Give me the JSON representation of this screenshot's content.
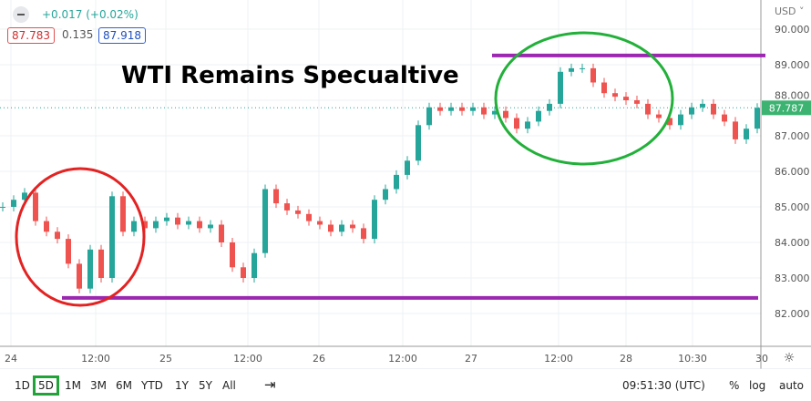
{
  "header": {
    "change": "+0.017 (+0.02%)",
    "bid": "87.783",
    "spread": "0.135",
    "ask": "87.918",
    "currency": "USD"
  },
  "colors": {
    "up": "#26a69a",
    "down": "#ef5350",
    "level_line": "#9c27b0",
    "red_circle": "#e32222",
    "green_circle": "#22b03a",
    "price_tag": "#3cb371"
  },
  "chart_data": {
    "type": "candlestick",
    "title": "WTI Remains Specualtive",
    "ylim": [
      81.3,
      90.8
    ],
    "yticks": [
      82,
      83,
      84,
      85,
      86,
      87,
      88,
      89,
      90
    ],
    "ytick_labels": [
      "82.000",
      "83.000",
      "84.000",
      "85.000",
      "86.000",
      "87.000",
      "88.000",
      "89.000",
      "90.000"
    ],
    "xtick_labels": [
      "24",
      "12:00",
      "25",
      "12:00",
      "26",
      "12:00",
      "27",
      "12:00",
      "28",
      "10:30",
      "30"
    ],
    "closes": [
      85.0,
      85.2,
      85.4,
      84.6,
      84.3,
      84.1,
      83.4,
      82.7,
      83.8,
      83.0,
      85.3,
      84.3,
      84.6,
      84.4,
      84.6,
      84.7,
      84.5,
      84.6,
      84.4,
      84.5,
      84.0,
      83.3,
      83.0,
      83.7,
      85.5,
      85.1,
      84.9,
      84.8,
      84.6,
      84.5,
      84.3,
      84.5,
      84.4,
      84.1,
      85.2,
      85.5,
      85.9,
      86.3,
      87.3,
      87.8,
      87.7,
      87.8,
      87.7,
      87.8,
      87.6,
      87.7,
      87.5,
      87.2,
      87.4,
      87.7,
      87.9,
      88.8,
      88.9,
      88.9,
      88.5,
      88.2,
      88.1,
      88.0,
      87.9,
      87.6,
      87.5,
      87.3,
      87.6,
      87.8,
      87.9,
      87.6,
      87.4,
      86.9,
      87.2,
      87.787
    ],
    "last_price": "87.787",
    "levels": [
      89.26,
      82.44
    ],
    "annotations": [
      "red circle around 24th low",
      "green circle around 27th high"
    ]
  },
  "toolbar": {
    "ranges": [
      "1D",
      "5D",
      "1M",
      "3M",
      "6M",
      "YTD",
      "1Y",
      "5Y",
      "All"
    ],
    "selected": "5D",
    "time": "09:51:30 (UTC)",
    "percent": "%",
    "log": "log",
    "auto": "auto"
  }
}
